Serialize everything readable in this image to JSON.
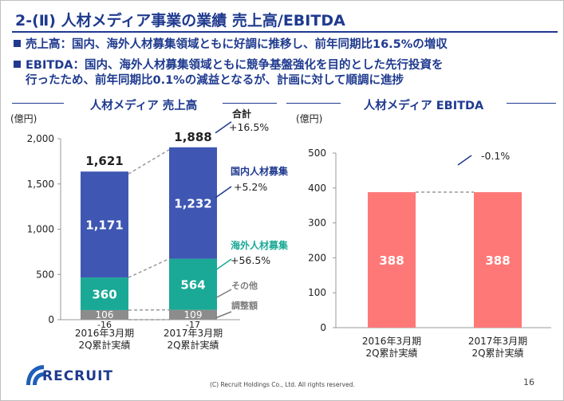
{
  "slide": {
    "title": "2-(Ⅱ) 人材メディア事業の業績 売上高/EBITDA",
    "bullets": [
      "売上高：国内、海外人材募集領域ともに好調に推移し、前年同期比16.5%の増収",
      "EBITDA：国内、海外人材募集領域ともに競争基盤強化を目的とした先行投資を",
      "行ったため、前年同期比0.1%の減益となるが、計画に対して順調に進捗"
    ],
    "footer": {
      "logo_text": "RECRUIT",
      "copyright": "(C) Recruit Holdings Co., Ltd. All rights reserved.",
      "page": "16"
    },
    "colors": {
      "accent": "#1f3a8f",
      "domestic": "#3f57b3",
      "overseas": "#1aa996",
      "other": "#8c8c8c",
      "ebitda": "#ff7878"
    }
  },
  "chart_data": [
    {
      "type": "bar",
      "title": "人材メディア 売上高",
      "unit": "(億円)",
      "categories": [
        "2016年3月期\n2Q累計実績",
        "2017年3月期\n2Q累計実績"
      ],
      "ylim": [
        0,
        2000
      ],
      "yticks": [
        "0",
        "500",
        "1,000",
        "1,500",
        "2,000"
      ],
      "series": [
        {
          "name": "調整額",
          "values": [
            -16,
            -17
          ],
          "labels": [
            "-16",
            "-17"
          ]
        },
        {
          "name": "その他",
          "values": [
            106,
            109
          ],
          "labels": [
            "106",
            "109"
          ]
        },
        {
          "name": "海外人材募集",
          "values": [
            360,
            564
          ],
          "labels": [
            "360",
            "564"
          ]
        },
        {
          "name": "国内人材募集",
          "values": [
            1171,
            1232
          ],
          "labels": [
            "1,171",
            "1,232"
          ]
        }
      ],
      "totals": [
        "1,621",
        "1,888"
      ],
      "annotations": {
        "total_label": "合計",
        "total_change": "+16.5%",
        "domestic_change": "+5.2%",
        "overseas_change": "+56.5%"
      }
    },
    {
      "type": "bar",
      "title": "人材メディア EBITDA",
      "unit": "(億円)",
      "categories": [
        "2016年3月期\n2Q累計実績",
        "2017年3月期\n2Q累計実績"
      ],
      "ylim": [
        0,
        500
      ],
      "yticks": [
        "0",
        "100",
        "200",
        "300",
        "400",
        "500"
      ],
      "values": [
        388,
        388
      ],
      "labels": [
        "388",
        "388"
      ],
      "annotations": {
        "change": "-0.1%"
      }
    }
  ]
}
